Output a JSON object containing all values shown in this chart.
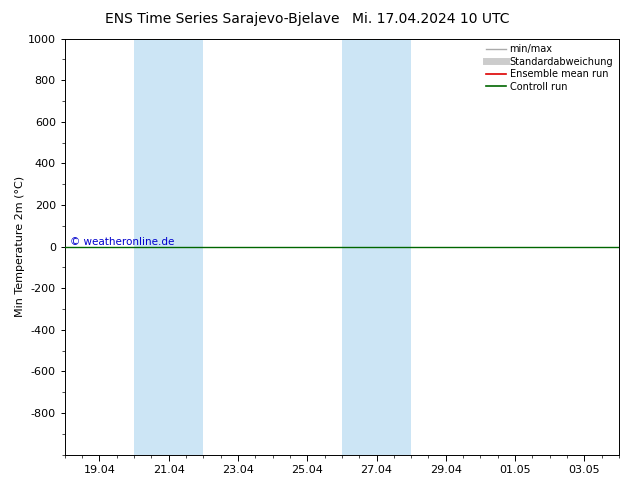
{
  "title_left": "ENS Time Series Sarajevo-Bjelave",
  "title_right": "Mi. 17.04.2024 10 UTC",
  "ylabel": "Min Temperature 2m (°C)",
  "ylim_top": -1000,
  "ylim_bottom": 1000,
  "yticks": [
    -800,
    -600,
    -400,
    -200,
    0,
    200,
    400,
    600,
    800,
    1000
  ],
  "xtick_labels": [
    "19.04",
    "21.04",
    "23.04",
    "25.04",
    "27.04",
    "29.04",
    "01.05",
    "03.05"
  ],
  "xtick_positions": [
    1,
    3,
    5,
    7,
    9,
    11,
    13,
    15
  ],
  "xlim": [
    0,
    16
  ],
  "blue_bands": [
    {
      "start": 2.0,
      "end": 4.0
    },
    {
      "start": 8.0,
      "end": 10.0
    }
  ],
  "green_line_y": 0,
  "copyright_text": "© weatheronline.de",
  "copyright_color": "#0000cc",
  "background_color": "#ffffff",
  "plot_bg_color": "#ffffff",
  "blue_band_color": "#cce5f5",
  "legend_items": [
    {
      "label": "min/max",
      "color": "#aaaaaa",
      "lw": 1.0
    },
    {
      "label": "Standardabweichung",
      "color": "#cccccc",
      "lw": 5
    },
    {
      "label": "Ensemble mean run",
      "color": "#dd0000",
      "lw": 1.2
    },
    {
      "label": "Controll run",
      "color": "#006600",
      "lw": 1.2
    }
  ],
  "green_line_color": "#006600",
  "title_fontsize": 10,
  "tick_fontsize": 8,
  "ylabel_fontsize": 8
}
